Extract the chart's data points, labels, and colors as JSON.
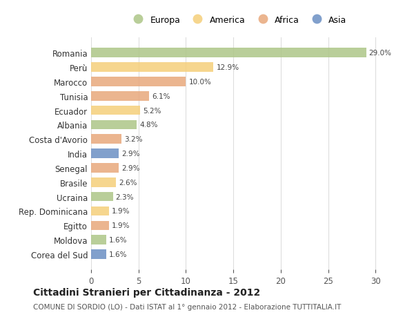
{
  "countries": [
    "Romania",
    "Perù",
    "Marocco",
    "Tunisia",
    "Ecuador",
    "Albania",
    "Costa d'Avorio",
    "India",
    "Senegal",
    "Brasile",
    "Ucraina",
    "Rep. Dominicana",
    "Egitto",
    "Moldova",
    "Corea del Sud"
  ],
  "values": [
    29.0,
    12.9,
    10.0,
    6.1,
    5.2,
    4.8,
    3.2,
    2.9,
    2.9,
    2.6,
    2.3,
    1.9,
    1.9,
    1.6,
    1.6
  ],
  "continents": [
    "Europa",
    "America",
    "Africa",
    "Africa",
    "America",
    "Europa",
    "Africa",
    "Asia",
    "Africa",
    "America",
    "Europa",
    "America",
    "Africa",
    "Europa",
    "Asia"
  ],
  "colors": {
    "Europa": "#adc687",
    "America": "#f5cf7a",
    "Africa": "#e8a87c",
    "Asia": "#6b8fc4"
  },
  "legend_order": [
    "Europa",
    "America",
    "Africa",
    "Asia"
  ],
  "title": "Cittadini Stranieri per Cittadinanza - 2012",
  "subtitle": "COMUNE DI SORDIO (LO) - Dati ISTAT al 1° gennaio 2012 - Elaborazione TUTTITALIA.IT",
  "xlim": [
    0,
    31
  ],
  "xticks": [
    0,
    5,
    10,
    15,
    20,
    25,
    30
  ],
  "bg_color": "#ffffff",
  "grid_color": "#dddddd",
  "bar_alpha": 0.85
}
